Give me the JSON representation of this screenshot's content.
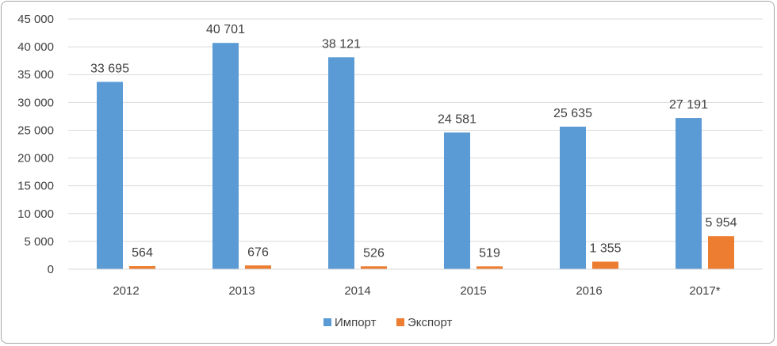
{
  "chart_data": {
    "type": "bar",
    "categories": [
      "2012",
      "2013",
      "2014",
      "2015",
      "2016",
      "2017*"
    ],
    "series": [
      {
        "name": "Импорт",
        "color": "#5b9bd5",
        "values": [
          33695,
          40701,
          38121,
          24581,
          25635,
          27191
        ],
        "labels": [
          "33 695",
          "40 701",
          "38 121",
          "24 581",
          "25 635",
          "27 191"
        ]
      },
      {
        "name": "Экспорт",
        "color": "#ed7d31",
        "values": [
          564,
          676,
          526,
          519,
          1355,
          5954
        ],
        "labels": [
          "564",
          "676",
          "526",
          "519",
          "1 355",
          "5 954"
        ]
      }
    ],
    "ylim": [
      0,
      45000
    ],
    "yticks": [
      0,
      5000,
      10000,
      15000,
      20000,
      25000,
      30000,
      35000,
      40000,
      45000
    ],
    "ytick_labels": [
      "0",
      "5 000",
      "10 000",
      "15 000",
      "20 000",
      "25 000",
      "30 000",
      "35 000",
      "40 000",
      "45 000"
    ],
    "grid": true,
    "legend": "bottom-center",
    "title": "",
    "xlabel": "",
    "ylabel": ""
  }
}
